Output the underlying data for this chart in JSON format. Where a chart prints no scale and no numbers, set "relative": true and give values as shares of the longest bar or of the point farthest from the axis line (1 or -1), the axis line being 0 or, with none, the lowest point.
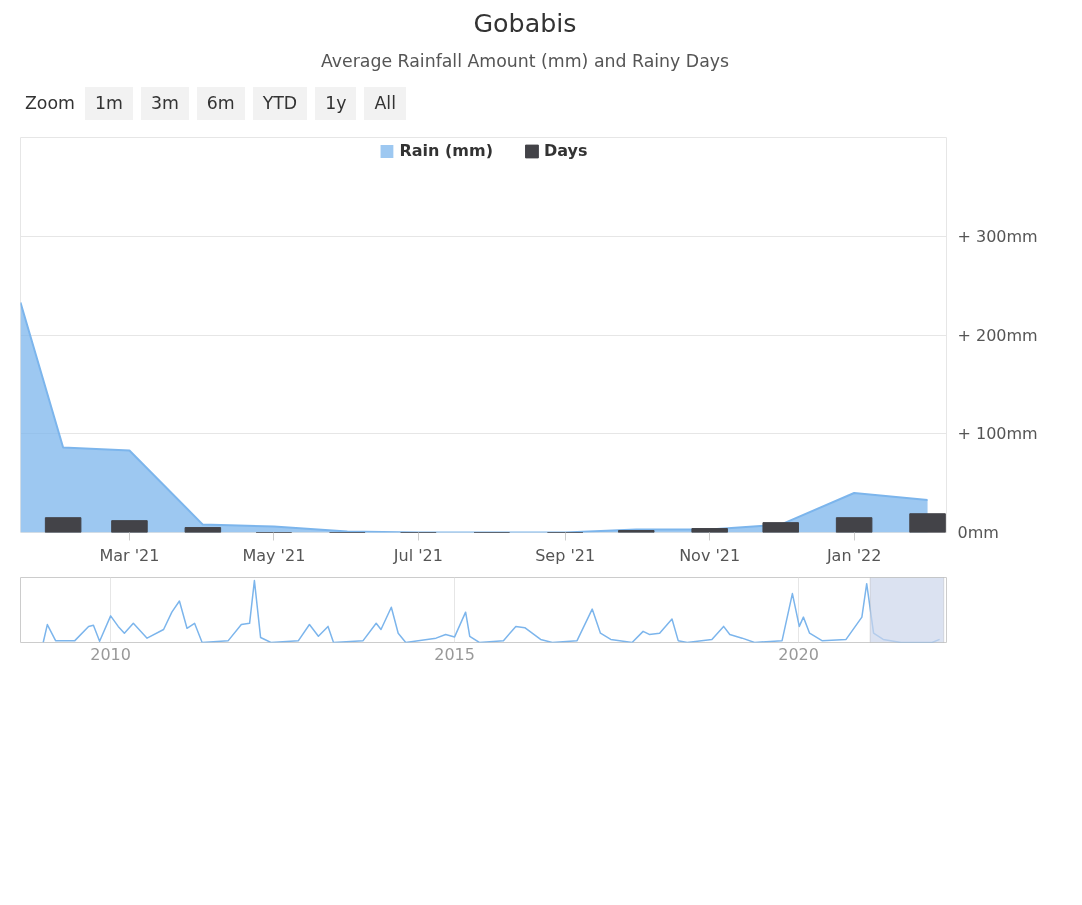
{
  "chart_data": [
    {
      "type": "area",
      "title": "Gobabis",
      "subtitle": "Average Rainfall Amount (mm) and Rainy Days",
      "annotations": [
        "Zoom",
        "1m",
        "3m",
        "6m",
        "YTD",
        "1y",
        "All"
      ],
      "x": [
        "2021-01-14",
        "2021-02-01",
        "2021-03-01",
        "2021-04-01",
        "2021-05-01",
        "2021-06-01",
        "2021-07-01",
        "2021-08-01",
        "2021-09-01",
        "2021-10-01",
        "2021-11-01",
        "2021-12-01",
        "2022-01-01",
        "2022-02-01"
      ],
      "series": [
        {
          "name": "Rain (mm)",
          "color": "#7cb5ec",
          "values": [
            233,
            86,
            83,
            8,
            6,
            1,
            0,
            0,
            0,
            3,
            3,
            8,
            40,
            33
          ]
        },
        {
          "name": "Days",
          "type": "bar",
          "color": "#434348",
          "x": [
            "2021-02-01",
            "2021-03-01",
            "2021-04-01",
            "2021-05-01",
            "2021-06-01",
            "2021-07-01",
            "2021-08-01",
            "2021-09-01",
            "2021-10-01",
            "2021-11-01",
            "2021-12-01",
            "2022-01-01",
            "2022-02-01"
          ],
          "values": [
            15,
            12,
            5,
            0,
            0,
            0,
            0,
            0,
            2,
            4,
            10,
            15,
            19
          ]
        }
      ],
      "xlim": [
        "2021-01-14",
        "2022-02-09"
      ],
      "xticks": [
        {
          "value": "2021-03-01",
          "label": "Mar '21"
        },
        {
          "value": "2021-05-01",
          "label": "May '21"
        },
        {
          "value": "2021-07-01",
          "label": "Jul '21"
        },
        {
          "value": "2021-09-01",
          "label": "Sep '21"
        },
        {
          "value": "2021-11-01",
          "label": "Nov '21"
        },
        {
          "value": "2022-01-01",
          "label": "Jan '22"
        }
      ],
      "ylim": [
        0,
        400
      ],
      "yticks": [
        {
          "value": 0,
          "label": "0mm"
        },
        {
          "value": 100,
          "label": "+ 100mm"
        },
        {
          "value": 200,
          "label": "+ 200mm"
        },
        {
          "value": 300,
          "label": "+ 300mm"
        }
      ],
      "grid": "y",
      "legend": "top"
    },
    {
      "type": "line",
      "relative": true,
      "color": "#7cb5ec",
      "x": [
        2009.02,
        2009.08,
        2009.2,
        2009.48,
        2009.68,
        2009.75,
        2009.84,
        2010.0,
        2010.11,
        2010.2,
        2010.33,
        2010.53,
        2010.77,
        2010.89,
        2011.0,
        2011.11,
        2011.22,
        2011.33,
        2011.71,
        2011.9,
        2012.02,
        2012.09,
        2012.18,
        2012.33,
        2012.73,
        2012.89,
        2013.02,
        2013.16,
        2013.24,
        2013.67,
        2013.86,
        2013.93,
        2014.08,
        2014.18,
        2014.29,
        2014.73,
        2014.87,
        2015.0,
        2015.16,
        2015.22,
        2015.36,
        2015.71,
        2015.89,
        2016.02,
        2016.25,
        2016.42,
        2016.78,
        2017.0,
        2017.12,
        2017.27,
        2017.4,
        2017.58,
        2017.74,
        2017.83,
        2017.98,
        2018.16,
        2018.25,
        2018.38,
        2018.74,
        2018.91,
        2019.0,
        2019.18,
        2019.36,
        2019.76,
        2019.91,
        2020.01,
        2020.07,
        2020.16,
        2020.34,
        2020.69,
        2020.92,
        2020.99,
        2021.09,
        2021.23,
        2021.49,
        2021.94,
        2022.05
      ],
      "values": [
        0,
        0.29,
        0.03,
        0.03,
        0.26,
        0.28,
        0.02,
        0.43,
        0.26,
        0.15,
        0.31,
        0.07,
        0.21,
        0.49,
        0.67,
        0.23,
        0.31,
        0,
        0.03,
        0.29,
        0.31,
        1,
        0.08,
        0,
        0.03,
        0.29,
        0.1,
        0.26,
        0,
        0.03,
        0.31,
        0.21,
        0.57,
        0.15,
        0,
        0.07,
        0.13,
        0.09,
        0.49,
        0.1,
        0,
        0.03,
        0.26,
        0.24,
        0.05,
        0,
        0.03,
        0.54,
        0.15,
        0.05,
        0.03,
        0,
        0.18,
        0.13,
        0.15,
        0.38,
        0.03,
        0,
        0.05,
        0.26,
        0.13,
        0.07,
        0,
        0.03,
        0.79,
        0.26,
        0.41,
        0.15,
        0.03,
        0.05,
        0.41,
        0.95,
        0.15,
        0.05,
        0,
        0,
        0.05
      ],
      "xlim": [
        2008.69,
        2022.15
      ],
      "xticks": [
        2010,
        2015,
        2020
      ],
      "grid": "x",
      "bands": [
        {
          "axis": "x",
          "from": 2021.04,
          "to": 2022.11,
          "color": "#ccd6eb"
        }
      ]
    }
  ]
}
